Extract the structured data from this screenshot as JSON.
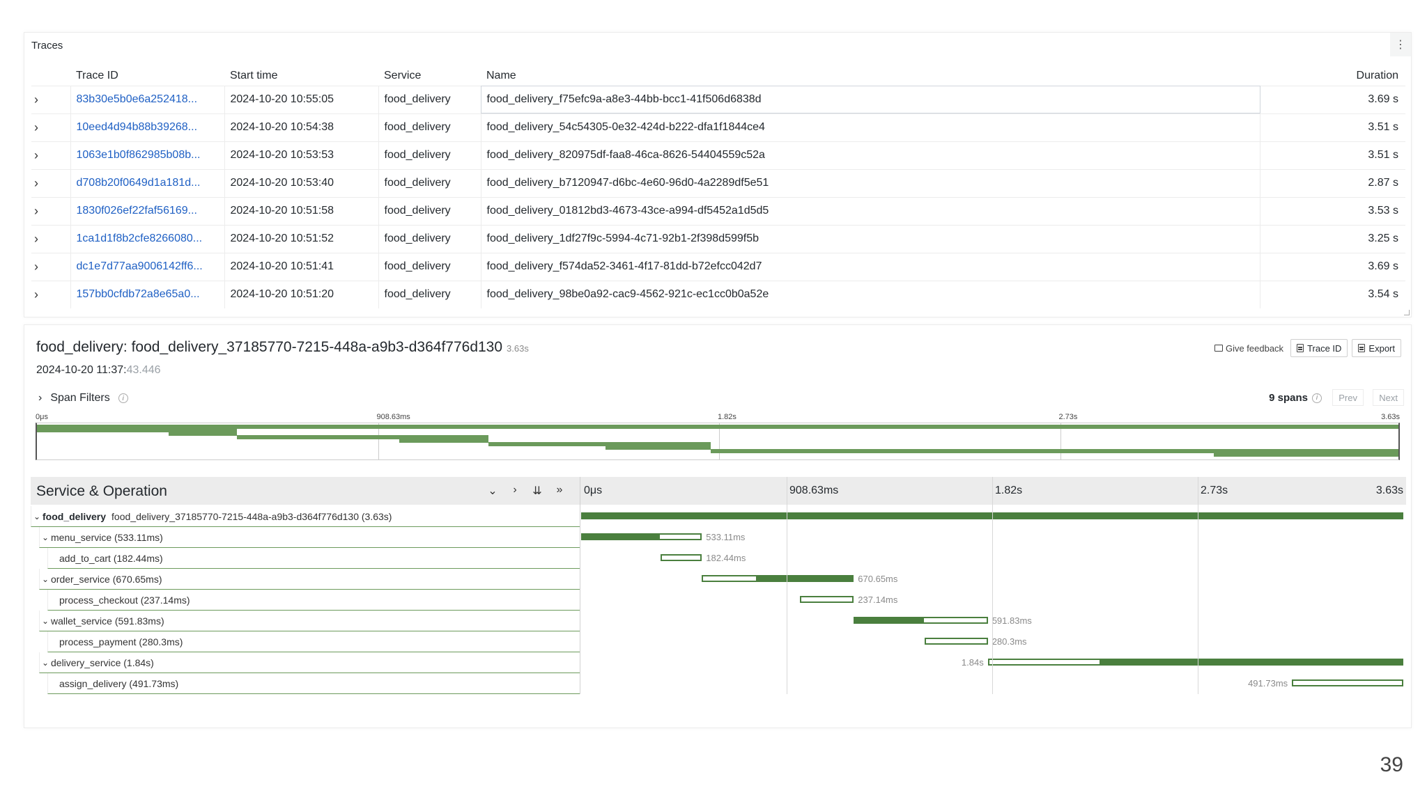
{
  "traces": {
    "title": "Traces",
    "menu_icon": "⋮",
    "columns": {
      "trace_id": "Trace ID",
      "start": "Start time",
      "service": "Service",
      "name": "Name",
      "duration": "Duration"
    },
    "rows": [
      {
        "id": "83b30e5b0e6a252418...",
        "start": "2024-10-20 10:55:05",
        "service": "food_delivery",
        "name": "food_delivery_f75efc9a-a8e3-44bb-bcc1-41f506d6838d",
        "duration": "3.69 s"
      },
      {
        "id": "10eed4d94b88b39268...",
        "start": "2024-10-20 10:54:38",
        "service": "food_delivery",
        "name": "food_delivery_54c54305-0e32-424d-b222-dfa1f1844ce4",
        "duration": "3.51 s"
      },
      {
        "id": "1063e1b0f862985b08b...",
        "start": "2024-10-20 10:53:53",
        "service": "food_delivery",
        "name": "food_delivery_820975df-faa8-46ca-8626-54404559c52a",
        "duration": "3.51 s"
      },
      {
        "id": "d708b20f0649d1a181d...",
        "start": "2024-10-20 10:53:40",
        "service": "food_delivery",
        "name": "food_delivery_b7120947-d6bc-4e60-96d0-4a2289df5e51",
        "duration": "2.87 s"
      },
      {
        "id": "1830f026ef22faf56169...",
        "start": "2024-10-20 10:51:58",
        "service": "food_delivery",
        "name": "food_delivery_01812bd3-4673-43ce-a994-df5452a1d5d5",
        "duration": "3.53 s"
      },
      {
        "id": "1ca1d1f8b2cfe8266080...",
        "start": "2024-10-20 10:51:52",
        "service": "food_delivery",
        "name": "food_delivery_1df27f9c-5994-4c71-92b1-2f398d599f5b",
        "duration": "3.25 s"
      },
      {
        "id": "dc1e7d77aa9006142ff6...",
        "start": "2024-10-20 10:51:41",
        "service": "food_delivery",
        "name": "food_delivery_f574da52-3461-4f17-81dd-b72efcc042d7",
        "duration": "3.69 s"
      },
      {
        "id": "157bb0cfdb72a8e65a0...",
        "start": "2024-10-20 10:51:20",
        "service": "food_delivery",
        "name": "food_delivery_98be0a92-cac9-4562-921c-ec1cc0b0a52e",
        "duration": "3.54 s"
      }
    ]
  },
  "detail": {
    "title": "food_delivery: food_delivery_37185770-7215-448a-a9b3-d364f776d130",
    "duration": "3.63s",
    "date_main": "2024-10-20 11:37:",
    "date_ms": "43.446",
    "give_feedback": "Give feedback",
    "trace_id_btn": "Trace ID",
    "export_btn": "Export",
    "span_filters": "Span Filters",
    "spans_count": "9 spans",
    "prev": "Prev",
    "next": "Next",
    "minimap_ticks": [
      "0μs",
      "908.63ms",
      "1.82s",
      "2.73s",
      "3.63s"
    ],
    "waterfall_title": "Service & Operation",
    "waterfall_ticks": [
      "0μs",
      "908.63ms",
      "1.82s",
      "2.73s",
      "3.63s"
    ],
    "controls": [
      "⌄",
      "›",
      "⇊",
      "»"
    ],
    "total_ms": 3630,
    "spans": [
      {
        "depth": 0,
        "collapsible": true,
        "service": "food_delivery",
        "label": "food_delivery_37185770-7215-448a-a9b3-d364f776d130 (3.63s)",
        "start_ms": 0,
        "dur_ms": 3630,
        "self_ms": 3630,
        "bar_label": "",
        "label_side": "none"
      },
      {
        "depth": 1,
        "collapsible": true,
        "service": "",
        "label": "menu_service (533.11ms)",
        "start_ms": 0,
        "dur_ms": 533.11,
        "self_ms": 350.67,
        "bar_label": "533.11ms",
        "label_side": "right"
      },
      {
        "depth": 2,
        "collapsible": false,
        "service": "",
        "label": "add_to_cart (182.44ms)",
        "start_ms": 350.67,
        "dur_ms": 182.44,
        "self_ms": 0,
        "bar_label": "182.44ms",
        "label_side": "right"
      },
      {
        "depth": 1,
        "collapsible": true,
        "service": "",
        "label": "order_service (670.65ms)",
        "start_ms": 533.11,
        "dur_ms": 670.65,
        "self_ms": 433.51,
        "bar_label": "670.65ms",
        "label_side": "right"
      },
      {
        "depth": 2,
        "collapsible": false,
        "service": "",
        "label": "process_checkout (237.14ms)",
        "start_ms": 966.62,
        "dur_ms": 237.14,
        "self_ms": 0,
        "bar_label": "237.14ms",
        "label_side": "right"
      },
      {
        "depth": 1,
        "collapsible": true,
        "service": "",
        "label": "wallet_service (591.83ms)",
        "start_ms": 1203.76,
        "dur_ms": 591.83,
        "self_ms": 311.53,
        "bar_label": "591.83ms",
        "label_side": "right"
      },
      {
        "depth": 2,
        "collapsible": false,
        "service": "",
        "label": "process_payment (280.3ms)",
        "start_ms": 1515.29,
        "dur_ms": 280.3,
        "self_ms": 0,
        "bar_label": "280.3ms",
        "label_side": "right"
      },
      {
        "depth": 1,
        "collapsible": true,
        "service": "",
        "label": "delivery_service (1.84s)",
        "start_ms": 1795.59,
        "dur_ms": 1834.41,
        "self_ms": 1342.68,
        "bar_label": "1.84s",
        "label_side": "left"
      },
      {
        "depth": 2,
        "collapsible": false,
        "service": "",
        "label": "assign_delivery (491.73ms)",
        "start_ms": 3138.27,
        "dur_ms": 491.73,
        "self_ms": 0,
        "bar_label": "491.73ms",
        "label_side": "left"
      }
    ]
  },
  "page_number": "39",
  "colors": {
    "link": "#1f60c4",
    "span_green": "#4a7f3e",
    "minimap_green": "#6b9a5b"
  }
}
